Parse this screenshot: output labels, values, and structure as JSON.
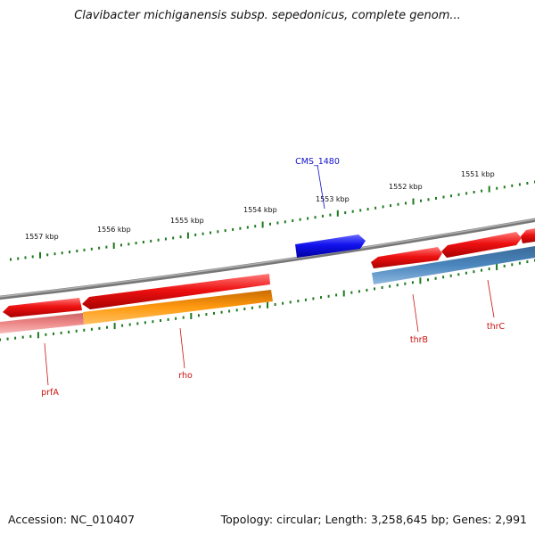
{
  "title": "Clavibacter michiganensis subsp. sepedonicus, complete genom...",
  "footer": {
    "accession": "Accession: NC_010407",
    "summary": "Topology: circular; Length: 3,258,645 bp; Genes: 2,991"
  },
  "colors": {
    "backbone": "#8a8a8a",
    "ticks": "#1e7a1e",
    "forward_gene": "#ee1111",
    "reverse_gene_steel": "#4a86bd",
    "reverse_gene_orange": "#ff9a10",
    "reverse_gene_pink": "#ee8888",
    "highlight_gene": "#1111ee",
    "gene_label": "#cc1111",
    "highlight_label": "#1111cc"
  },
  "scale_labels": [
    "1557 kbp",
    "1556 kbp",
    "1555 kbp",
    "1554 kbp",
    "1553 kbp",
    "1552 kbp",
    "1551 kbp"
  ],
  "genes": [
    {
      "name": "prfA",
      "strand": "reverse"
    },
    {
      "name": "rho",
      "strand": "reverse"
    },
    {
      "name": "thrB",
      "strand": "reverse"
    },
    {
      "name": "thrC",
      "strand": "reverse"
    },
    {
      "name": "CMS_1480",
      "strand": "forward",
      "highlight": true
    }
  ]
}
